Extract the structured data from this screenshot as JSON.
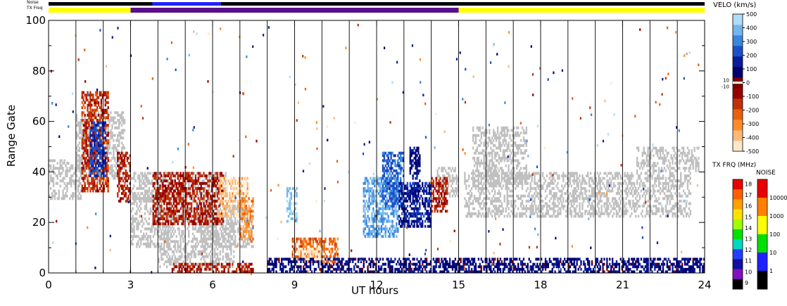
{
  "top_strips": {
    "noise_label": "Noise",
    "txfreq_label": "TX Freq"
  },
  "chart_data": {
    "type": "heatmap",
    "xlabel": "UT hours",
    "ylabel": "Range Gate",
    "xlim": [
      0,
      24
    ],
    "ylim": [
      0,
      100
    ],
    "x_ticks": [
      "0",
      "3",
      "6",
      "9",
      "12",
      "15",
      "18",
      "21",
      "24"
    ],
    "y_ticks": [
      "0",
      "20",
      "40",
      "60",
      "80",
      "100"
    ],
    "hour_gridlines": [
      1,
      2,
      3,
      4,
      5,
      6,
      7,
      8,
      9,
      10,
      11,
      12,
      13,
      14,
      15,
      16,
      17,
      18,
      19,
      20,
      21,
      22,
      23
    ],
    "ground_scatter_color": "#c0c0c0",
    "tx_freq_strip": [
      {
        "start": 0,
        "end": 3,
        "color": "#ffff00"
      },
      {
        "start": 3,
        "end": 15,
        "color": "#5a0f8c"
      },
      {
        "start": 15,
        "end": 24,
        "color": "#ffff00"
      }
    ],
    "noise_strip": [
      {
        "start": 0,
        "end": 3.8,
        "color": "#000000"
      },
      {
        "start": 3.8,
        "end": 6.3,
        "color": "#2020ff"
      },
      {
        "start": 6.3,
        "end": 24,
        "color": "#000000"
      }
    ],
    "scatter_regions": [
      {
        "kind": "ground",
        "x": [
          0.0,
          1.2
        ],
        "y": [
          29,
          45
        ]
      },
      {
        "kind": "ground",
        "x": [
          1.0,
          2.8
        ],
        "y": [
          36,
          64
        ]
      },
      {
        "kind": "ground",
        "x": [
          3.0,
          6.5
        ],
        "y": [
          28,
          40
        ]
      },
      {
        "kind": "ground",
        "x": [
          3.0,
          4.5
        ],
        "y": [
          10,
          32
        ]
      },
      {
        "kind": "ground",
        "x": [
          4.0,
          6.8
        ],
        "y": [
          2,
          26
        ]
      },
      {
        "kind": "ground",
        "x": [
          5.5,
          7.5
        ],
        "y": [
          10,
          27
        ]
      },
      {
        "kind": "ground",
        "x": [
          14.2,
          15.0
        ],
        "y": [
          30,
          42
        ]
      },
      {
        "kind": "ground",
        "x": [
          15.2,
          23.5
        ],
        "y": [
          22,
          40
        ]
      },
      {
        "kind": "ground",
        "x": [
          15.5,
          17.5
        ],
        "y": [
          35,
          58
        ]
      },
      {
        "kind": "ground",
        "x": [
          21.5,
          23.8
        ],
        "y": [
          40,
          50
        ]
      },
      {
        "kind": "velocity",
        "x": [
          1.2,
          2.2
        ],
        "y": [
          32,
          72
        ],
        "v": -150
      },
      {
        "kind": "velocity",
        "x": [
          1.5,
          2.1
        ],
        "y": [
          38,
          60
        ],
        "v": 200
      },
      {
        "kind": "velocity",
        "x": [
          2.5,
          3.0
        ],
        "y": [
          28,
          48
        ],
        "v": -120
      },
      {
        "kind": "velocity",
        "x": [
          3.8,
          6.4
        ],
        "y": [
          19,
          40
        ],
        "v": -120
      },
      {
        "kind": "velocity",
        "x": [
          6.2,
          7.3
        ],
        "y": [
          22,
          38
        ],
        "v": -400
      },
      {
        "kind": "velocity",
        "x": [
          7.0,
          7.5
        ],
        "y": [
          12,
          30
        ],
        "v": -300
      },
      {
        "kind": "velocity",
        "x": [
          8.9,
          10.6
        ],
        "y": [
          4,
          14
        ],
        "v": -250
      },
      {
        "kind": "velocity",
        "x": [
          9.1,
          10.0
        ],
        "y": [
          4,
          10
        ],
        "v": -460
      },
      {
        "kind": "velocity",
        "x": [
          8.7,
          9.1
        ],
        "y": [
          20,
          34
        ],
        "v": 420
      },
      {
        "kind": "velocity",
        "x": [
          11.5,
          12.8
        ],
        "y": [
          14,
          38
        ],
        "v": 360
      },
      {
        "kind": "velocity",
        "x": [
          12.2,
          13.0
        ],
        "y": [
          26,
          48
        ],
        "v": 250
      },
      {
        "kind": "velocity",
        "x": [
          12.8,
          14.0
        ],
        "y": [
          18,
          36
        ],
        "v": 150
      },
      {
        "kind": "velocity",
        "x": [
          13.2,
          13.6
        ],
        "y": [
          28,
          50
        ],
        "v": 130
      },
      {
        "kind": "velocity",
        "x": [
          14.0,
          14.6
        ],
        "y": [
          24,
          38
        ],
        "v": -120
      },
      {
        "kind": "velocity",
        "x": [
          8.0,
          24.0
        ],
        "y": [
          0,
          6
        ],
        "v": 100
      },
      {
        "kind": "velocity",
        "x": [
          4.5,
          7.5
        ],
        "y": [
          0,
          4
        ],
        "v": -120
      }
    ],
    "velocity_scale": {
      "title": "VELO (km/s)",
      "range": [
        -500,
        500
      ],
      "ticks": [
        "500",
        "400",
        "300",
        "200",
        "100",
        "0",
        "-100",
        "-200",
        "-300",
        "-400",
        "-500"
      ],
      "aux_labels": [
        "10",
        "-10"
      ],
      "colors": [
        "#ffe8c8",
        "#ffb878",
        "#ff8c28",
        "#e86010",
        "#c03008",
        "#960000",
        "#7c0000",
        "#000070",
        "#0a1c9a",
        "#1c50c8",
        "#3a86dc",
        "#74b6ec",
        "#b0dcf8"
      ]
    },
    "txfreq_scale": {
      "title": "TX FRQ (MHz)",
      "ticks": [
        "18",
        "17",
        "16",
        "15",
        "14",
        "13",
        "12",
        "11",
        "10",
        "9"
      ],
      "colors": [
        "#e80000",
        "#ff6000",
        "#ffa000",
        "#ffe000",
        "#a0ff00",
        "#00e000",
        "#00d8c0",
        "#2040ff",
        "#1010a0",
        "#8010c0",
        "#000000"
      ]
    },
    "noise_scale": {
      "title": "NOISE",
      "ticks": [
        "10000",
        "1000",
        "100",
        "10",
        "1"
      ],
      "colors": [
        "#e80000",
        "#ff8000",
        "#ffff00",
        "#00e000",
        "#2020ff",
        "#000000"
      ]
    }
  }
}
